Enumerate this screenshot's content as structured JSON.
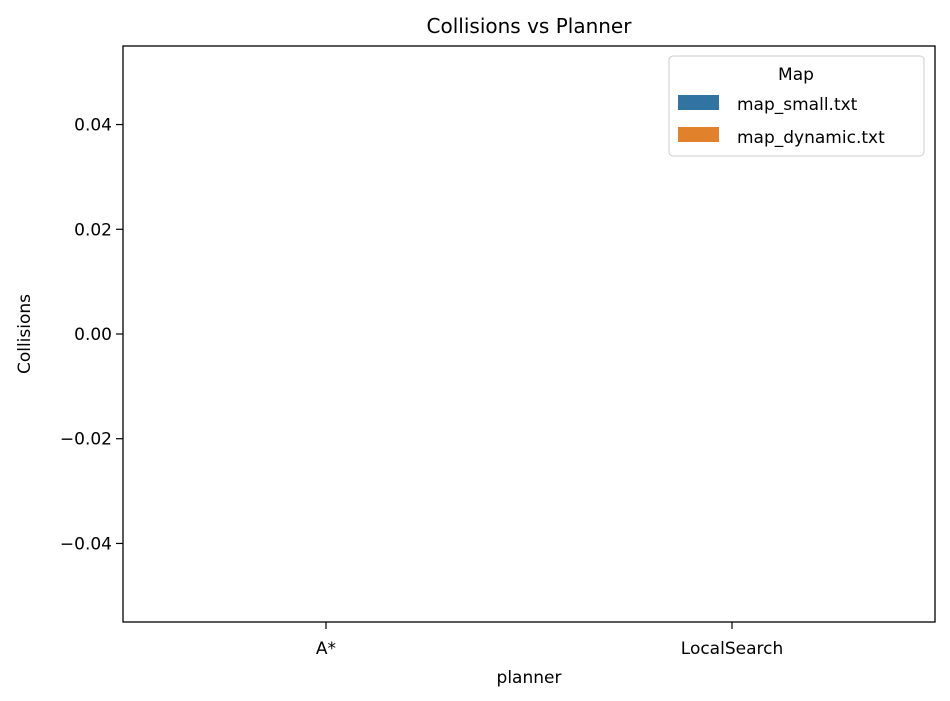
{
  "chart_data": {
    "type": "bar",
    "title": "Collisions vs Planner",
    "xlabel": "planner",
    "ylabel": "Collisions",
    "categories": [
      "A*",
      "LocalSearch"
    ],
    "series": [
      {
        "name": "map_small.txt",
        "color": "#3274a1",
        "values": [
          0,
          0
        ]
      },
      {
        "name": "map_dynamic.txt",
        "color": "#e1812c",
        "values": [
          0,
          0
        ]
      }
    ],
    "ylim": [
      -0.055,
      0.055
    ],
    "yticks": [
      0.04,
      0.02,
      0.0,
      -0.02,
      -0.04
    ],
    "ytick_labels": [
      "0.04",
      "0.02",
      "0.00",
      "−0.02",
      "−0.04"
    ],
    "grid": false,
    "legend": {
      "title": "Map",
      "placement": "upper right"
    }
  }
}
